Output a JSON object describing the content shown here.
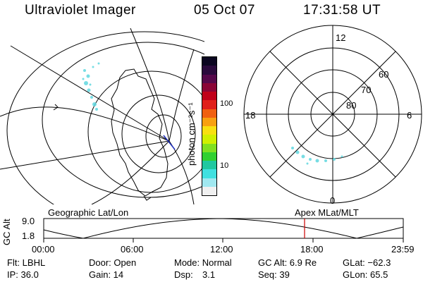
{
  "header": {
    "instrument": "Ultraviolet Imager",
    "date": "05 Oct 07",
    "time": "17:31:58 UT"
  },
  "colorbar": {
    "label": "photon cm⁻²s⁻¹",
    "ticks": [
      "100",
      "10"
    ],
    "colors": [
      "#0b0620",
      "#2a0a3c",
      "#55084a",
      "#8a0436",
      "#c0001a",
      "#e0201a",
      "#f06010",
      "#f8a010",
      "#f8e010",
      "#d0f000",
      "#80e020",
      "#30d030",
      "#20c8a0",
      "#40e0e0",
      "#a0e8f0",
      "#f0f0f0"
    ]
  },
  "polar": {
    "mlt_labels": {
      "top": "12",
      "left": "18",
      "right": "6",
      "bottom": "0"
    },
    "lat_labels": [
      "60",
      "70",
      "80"
    ]
  },
  "timeline": {
    "ylabel": "GC Alt",
    "ymax": "9.0",
    "ymin": "1.8",
    "left_title": "Geographic Lat/Lon",
    "right_title": "Apex MLat/MLT",
    "xticks": [
      "00:00",
      "06:00",
      "12:00",
      "18:00",
      "23:59"
    ],
    "marker_color": "#cc0000"
  },
  "info": {
    "flt": "Flt: LBHL",
    "door": "Door: Open",
    "mode": "Mode: Normal",
    "gcalt": "GC Alt: 6.9 Re",
    "glat": "GLat: −62.3",
    "ip": "IP: 36.0",
    "gain": "Gain: 14",
    "dsp_label": "Dsp:",
    "dsp_value": "3.1",
    "seq": "Seq: 39",
    "glon": "GLon: 65.5"
  }
}
